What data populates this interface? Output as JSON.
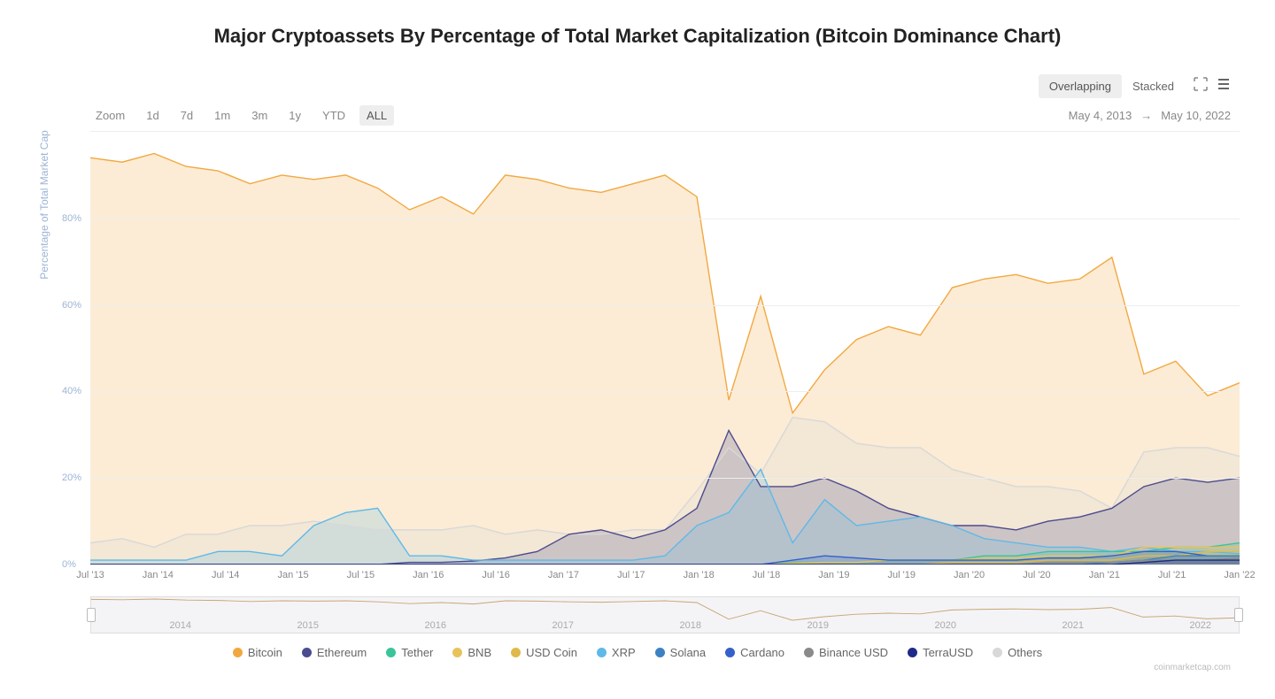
{
  "title": "Major Cryptoassets By Percentage of Total Market Capitalization (Bitcoin Dominance Chart)",
  "view_toggle": {
    "overlapping": "Overlapping",
    "stacked": "Stacked",
    "active": "overlapping"
  },
  "zoom": {
    "label": "Zoom",
    "options": [
      "1d",
      "7d",
      "1m",
      "3m",
      "1y",
      "YTD",
      "ALL"
    ],
    "active": "ALL"
  },
  "date_range": {
    "from": "May 4, 2013",
    "to": "May 10, 2022",
    "arrow": "→"
  },
  "y_axis": {
    "label": "Percentage of Total Market Cap",
    "ticks": [
      0,
      20,
      40,
      60,
      80
    ],
    "suffix": "%",
    "ylim": [
      0,
      100
    ],
    "tick_color": "#9db4d4",
    "grid_color": "#eeeeee"
  },
  "x_axis": {
    "ticks": [
      "Jul '13",
      "Jan '14",
      "Jul '14",
      "Jan '15",
      "Jul '15",
      "Jan '16",
      "Jul '16",
      "Jan '17",
      "Jul '17",
      "Jan '18",
      "Jul '18",
      "Jan '19",
      "Jul '19",
      "Jan '20",
      "Jul '20",
      "Jan '21",
      "Jul '21",
      "Jan '22"
    ]
  },
  "navigator": {
    "years": [
      "2014",
      "2015",
      "2016",
      "2017",
      "2018",
      "2019",
      "2020",
      "2021",
      "2022"
    ]
  },
  "legend": [
    {
      "name": "Bitcoin",
      "color": "#f2a840"
    },
    {
      "name": "Ethereum",
      "color": "#4b4b8f"
    },
    {
      "name": "Tether",
      "color": "#3bc49a"
    },
    {
      "name": "BNB",
      "color": "#e8c35a"
    },
    {
      "name": "USD Coin",
      "color": "#e0b94b"
    },
    {
      "name": "XRP",
      "color": "#5fb9e8"
    },
    {
      "name": "Solana",
      "color": "#3b82c4"
    },
    {
      "name": "Cardano",
      "color": "#3460c9"
    },
    {
      "name": "Binance USD",
      "color": "#8a8a8a"
    },
    {
      "name": "TerraUSD",
      "color": "#1e2a8a"
    },
    {
      "name": "Others",
      "color": "#d8d8d8"
    }
  ],
  "attribution": "coinmarketcap.com",
  "chart": {
    "type": "area-overlap",
    "background": "#ffffff",
    "fill_opacity": 0.22,
    "line_width": 1.4,
    "n_points": 37,
    "series": {
      "bitcoin": {
        "color": "#f2a840",
        "values": [
          94,
          93,
          95,
          92,
          91,
          88,
          90,
          89,
          90,
          87,
          82,
          85,
          81,
          90,
          89,
          87,
          86,
          88,
          90,
          85,
          38,
          62,
          35,
          45,
          52,
          55,
          53,
          64,
          66,
          67,
          65,
          66,
          71,
          44,
          47,
          39,
          42
        ]
      },
      "ethereum": {
        "color": "#4b4b8f",
        "values": [
          0,
          0,
          0,
          0,
          0,
          0,
          0,
          0,
          0,
          0,
          0.5,
          0.5,
          0.8,
          1.5,
          3,
          7,
          8,
          6,
          8,
          13,
          31,
          18,
          18,
          20,
          17,
          13,
          11,
          9,
          9,
          8,
          10,
          11,
          13,
          18,
          20,
          19,
          20
        ]
      },
      "xrp": {
        "color": "#5fb9e8",
        "values": [
          1,
          1,
          1,
          1,
          3,
          3,
          2,
          9,
          12,
          13,
          2,
          2,
          1,
          1,
          1,
          1,
          1,
          1,
          2,
          9,
          12,
          22,
          5,
          15,
          9,
          10,
          11,
          9,
          6,
          5,
          4,
          4,
          3,
          4,
          3,
          3,
          2.5
        ]
      },
      "others": {
        "color": "#d8d8d8",
        "values": [
          5,
          6,
          4,
          7,
          7,
          9,
          9,
          10,
          9,
          8,
          8,
          8,
          9,
          7,
          8,
          7,
          7,
          8,
          8,
          17,
          27,
          21,
          34,
          33,
          28,
          27,
          27,
          22,
          20,
          18,
          18,
          17,
          13,
          26,
          27,
          27,
          25
        ]
      },
      "tether": {
        "color": "#3bc49a",
        "values": [
          0,
          0,
          0,
          0,
          0,
          0,
          0,
          0,
          0,
          0,
          0,
          0,
          0,
          0,
          0,
          0,
          0,
          0,
          0,
          0,
          0,
          0,
          0.5,
          0.5,
          0.5,
          1,
          1,
          1,
          2,
          2,
          3,
          3,
          3,
          3,
          4,
          4,
          5
        ]
      },
      "bnb": {
        "color": "#e8c35a",
        "values": [
          0,
          0,
          0,
          0,
          0,
          0,
          0,
          0,
          0,
          0,
          0,
          0,
          0,
          0,
          0,
          0,
          0,
          0,
          0,
          0,
          0,
          0,
          0.3,
          0.5,
          0.5,
          1,
          1,
          1,
          1.5,
          1.5,
          2,
          2,
          2,
          4,
          4,
          4,
          4
        ]
      },
      "usdcoin": {
        "color": "#e0b94b",
        "values": [
          0,
          0,
          0,
          0,
          0,
          0,
          0,
          0,
          0,
          0,
          0,
          0,
          0,
          0,
          0,
          0,
          0,
          0,
          0,
          0,
          0,
          0,
          0,
          0,
          0,
          0,
          0,
          0.5,
          0.5,
          0.5,
          1,
          1,
          1,
          2,
          2,
          3,
          3
        ]
      },
      "solana": {
        "color": "#3b82c4",
        "values": [
          0,
          0,
          0,
          0,
          0,
          0,
          0,
          0,
          0,
          0,
          0,
          0,
          0,
          0,
          0,
          0,
          0,
          0,
          0,
          0,
          0,
          0,
          0,
          0,
          0,
          0,
          0,
          0,
          0,
          0,
          0,
          0,
          0.5,
          1,
          2,
          2,
          2
        ]
      },
      "cardano": {
        "color": "#3460c9",
        "values": [
          0,
          0,
          0,
          0,
          0,
          0,
          0,
          0,
          0,
          0,
          0,
          0,
          0,
          0,
          0,
          0,
          0,
          0,
          0,
          0,
          0,
          0,
          1,
          2,
          1.5,
          1,
          1,
          1,
          1,
          1,
          1.5,
          1.5,
          2,
          3,
          3,
          2,
          2
        ]
      },
      "busd": {
        "color": "#8a8a8a",
        "values": [
          0,
          0,
          0,
          0,
          0,
          0,
          0,
          0,
          0,
          0,
          0,
          0,
          0,
          0,
          0,
          0,
          0,
          0,
          0,
          0,
          0,
          0,
          0,
          0,
          0,
          0,
          0,
          0,
          0,
          0,
          0.5,
          0.5,
          0.5,
          1,
          1,
          1,
          1.5
        ]
      },
      "terrausd": {
        "color": "#1e2a8a",
        "values": [
          0,
          0,
          0,
          0,
          0,
          0,
          0,
          0,
          0,
          0,
          0,
          0,
          0,
          0,
          0,
          0,
          0,
          0,
          0,
          0,
          0,
          0,
          0,
          0,
          0,
          0,
          0,
          0,
          0,
          0,
          0,
          0,
          0,
          0.5,
          1,
          1,
          1
        ]
      }
    }
  }
}
